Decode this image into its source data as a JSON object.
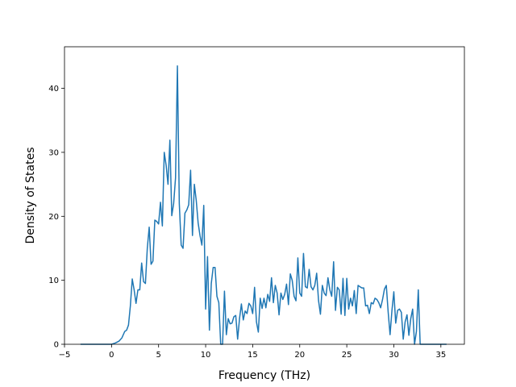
{
  "chart_data": {
    "type": "line",
    "title": "",
    "xlabel": "Frequency (THz)",
    "ylabel": "Density of States",
    "xlim": [
      -5.0,
      37.5
    ],
    "ylim": [
      0,
      46.5
    ],
    "xticks": [
      -5,
      0,
      5,
      10,
      15,
      20,
      25,
      30,
      35
    ],
    "yticks": [
      0,
      10,
      20,
      30,
      40
    ],
    "grid": false,
    "line_color": "#1f77b4",
    "series": [
      {
        "x": [
          -3.3,
          -2.0,
          0.0,
          0.4,
          0.8,
          1.1,
          1.4,
          1.6,
          1.8,
          2.0,
          2.2,
          2.4,
          2.6,
          2.8,
          3.0,
          3.2,
          3.4,
          3.6,
          3.8,
          4.0,
          4.2,
          4.4,
          4.6,
          4.8,
          5.0,
          5.2,
          5.4,
          5.6,
          5.8,
          6.0,
          6.2,
          6.4,
          6.6,
          6.8,
          7.0,
          7.2,
          7.4,
          7.6,
          7.8,
          8.0,
          8.2,
          8.4,
          8.6,
          8.8,
          9.0,
          9.2,
          9.4,
          9.6,
          9.8,
          10.0,
          10.2,
          10.4,
          10.6,
          10.8,
          11.0,
          11.2,
          11.4,
          11.6,
          11.8,
          12.0,
          12.2,
          12.4,
          12.6,
          12.8,
          13.0,
          13.2,
          13.4,
          13.6,
          13.8,
          14.0,
          14.2,
          14.4,
          14.6,
          14.8,
          15.0,
          15.2,
          15.4,
          15.6,
          15.8,
          16.0,
          16.2,
          16.4,
          16.6,
          16.8,
          17.0,
          17.2,
          17.4,
          17.6,
          17.8,
          18.0,
          18.2,
          18.4,
          18.6,
          18.8,
          19.0,
          19.2,
          19.4,
          19.6,
          19.8,
          20.0,
          20.2,
          20.4,
          20.6,
          20.8,
          21.0,
          21.2,
          21.4,
          21.6,
          21.8,
          22.0,
          22.2,
          22.4,
          22.6,
          22.8,
          23.0,
          23.2,
          23.4,
          23.6,
          23.8,
          24.0,
          24.2,
          24.4,
          24.6,
          24.8,
          25.0,
          25.2,
          25.4,
          25.6,
          25.8,
          26.0,
          26.2,
          26.4,
          26.6,
          26.8,
          27.0,
          27.2,
          27.4,
          27.6,
          27.8,
          28.0,
          28.2,
          28.4,
          28.6,
          28.8,
          29.0,
          29.2,
          29.4,
          29.6,
          29.8,
          30.0,
          30.2,
          30.4,
          30.6,
          30.8,
          31.0,
          31.2,
          31.4,
          31.6,
          31.8,
          32.0,
          32.2,
          32.4,
          32.6,
          32.8,
          33.0,
          34.0,
          35.6
        ],
        "y": [
          0,
          0,
          0,
          0.2,
          0.5,
          1.0,
          2.0,
          2.2,
          3.0,
          6.0,
          10.2,
          8.5,
          6.4,
          8.5,
          8.5,
          12.7,
          9.8,
          9.5,
          15.0,
          18.3,
          12.5,
          13.0,
          19.4,
          19.2,
          18.8,
          22.2,
          18.5,
          30.0,
          28.0,
          25.0,
          31.9,
          20.1,
          22.0,
          26.0,
          43.5,
          22.0,
          15.5,
          15.0,
          20.5,
          21.0,
          21.8,
          27.2,
          17.0,
          25.0,
          22.5,
          19.0,
          17.0,
          15.5,
          21.7,
          5.5,
          13.7,
          2.2,
          9.5,
          12.0,
          12.0,
          7.5,
          6.5,
          0,
          0,
          8.3,
          1.5,
          4.0,
          3.2,
          3.3,
          4.3,
          4.5,
          0.8,
          4.0,
          6.3,
          3.8,
          5.2,
          4.8,
          6.4,
          6.0,
          4.8,
          8.9,
          3.5,
          1.9,
          7.2,
          5.6,
          7.2,
          5.7,
          7.8,
          6.7,
          10.4,
          6.5,
          9.2,
          8.0,
          4.6,
          8.0,
          7.0,
          7.8,
          9.4,
          6.2,
          11.0,
          10.0,
          7.5,
          6.8,
          13.5,
          8.0,
          7.5,
          14.2,
          9.0,
          8.8,
          11.7,
          9.0,
          8.5,
          9.2,
          11.1,
          6.8,
          4.7,
          9.2,
          8.0,
          7.6,
          10.4,
          8.5,
          7.5,
          12.9,
          5.3,
          8.9,
          8.5,
          4.7,
          10.3,
          4.5,
          10.3,
          5.5,
          7.2,
          6.0,
          8.4,
          4.8,
          9.2,
          9.0,
          8.8,
          8.8,
          6.0,
          6.1,
          4.8,
          6.5,
          6.3,
          7.2,
          7.0,
          6.5,
          5.7,
          7.0,
          8.6,
          9.2,
          5.0,
          1.5,
          5.3,
          8.2,
          3.3,
          5.3,
          5.5,
          5.0,
          0.8,
          3.5,
          4.6,
          1.4,
          4.0,
          5.5,
          0,
          2.0,
          8.5,
          0,
          0,
          0,
          0
        ]
      }
    ]
  }
}
